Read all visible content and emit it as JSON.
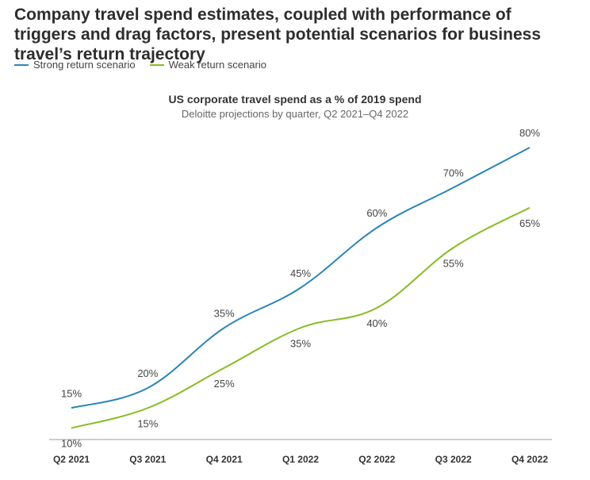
{
  "headline": "Company travel spend estimates, coupled with performance of triggers and drag factors, present potential scenarios for business travel’s return trajectory",
  "colors": {
    "strong": "#2b86b5",
    "weak": "#86bc25",
    "axis": "#9a9a9a",
    "text": "#333333"
  },
  "chart_data": {
    "type": "line",
    "title": "US corporate travel spend as a % of 2019 spend",
    "subtitle": "Deloitte projections by quarter, Q2 2021–Q4 2022",
    "legend_position": "top-left",
    "grid": false,
    "categories": [
      "Q2 2021",
      "Q3 2021",
      "Q4 2021",
      "Q1 2022",
      "Q2 2022",
      "Q3 2022",
      "Q4 2022"
    ],
    "ylim": [
      0,
      100
    ],
    "series": [
      {
        "name": "Strong return scenario",
        "values": [
          15,
          20,
          35,
          45,
          60,
          70,
          80
        ],
        "labels": [
          "15%",
          "20%",
          "35%",
          "45%",
          "60%",
          "70%",
          "80%"
        ]
      },
      {
        "name": "Weak return scenario",
        "values": [
          10,
          15,
          25,
          35,
          40,
          55,
          65
        ],
        "labels": [
          "10%",
          "15%",
          "25%",
          "35%",
          "40%",
          "55%",
          "65%"
        ]
      }
    ]
  }
}
